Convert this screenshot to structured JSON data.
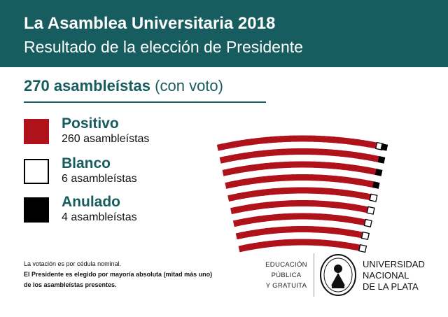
{
  "header": {
    "title": "La Asamblea Universitaria 2018",
    "subtitle": "Resultado de la elección de Presidente"
  },
  "total": {
    "number_label": "270 asambleístas",
    "suffix": "(con voto)"
  },
  "legend": [
    {
      "name": "Positivo",
      "count_label": "260 asambleístas",
      "color": "#b0121c"
    },
    {
      "name": "Blanco",
      "count_label": "6 asambleístas",
      "color": "#ffffff"
    },
    {
      "name": "Anulado",
      "count_label": "4 asambleístas",
      "color": "#000000"
    }
  ],
  "notes": {
    "line1": "La votación es por cédula nominal.",
    "line2": "El Presidente es elegido por mayoría absoluta (mitad más uno)",
    "line3": "de los asambleístas presentes."
  },
  "footer": {
    "edu_line1": "EDUCACIÓN",
    "edu_line2": "PÚBLICA",
    "edu_line3": "Y GRATUITA",
    "univ_line1": "UNIVERSIDAD",
    "univ_line2": "NACIONAL",
    "univ_line3": "DE LA PLATA"
  },
  "colors": {
    "brand": "#175c5e",
    "positivo": "#b0121c",
    "blanco": "#ffffff",
    "anulado": "#000000"
  },
  "chart_data": {
    "type": "parliament",
    "total": 270,
    "series": [
      {
        "name": "Positivo",
        "value": 260,
        "color": "#b0121c"
      },
      {
        "name": "Blanco",
        "value": 6,
        "color": "#ffffff"
      },
      {
        "name": "Anulado",
        "value": 4,
        "color": "#000000"
      }
    ]
  }
}
